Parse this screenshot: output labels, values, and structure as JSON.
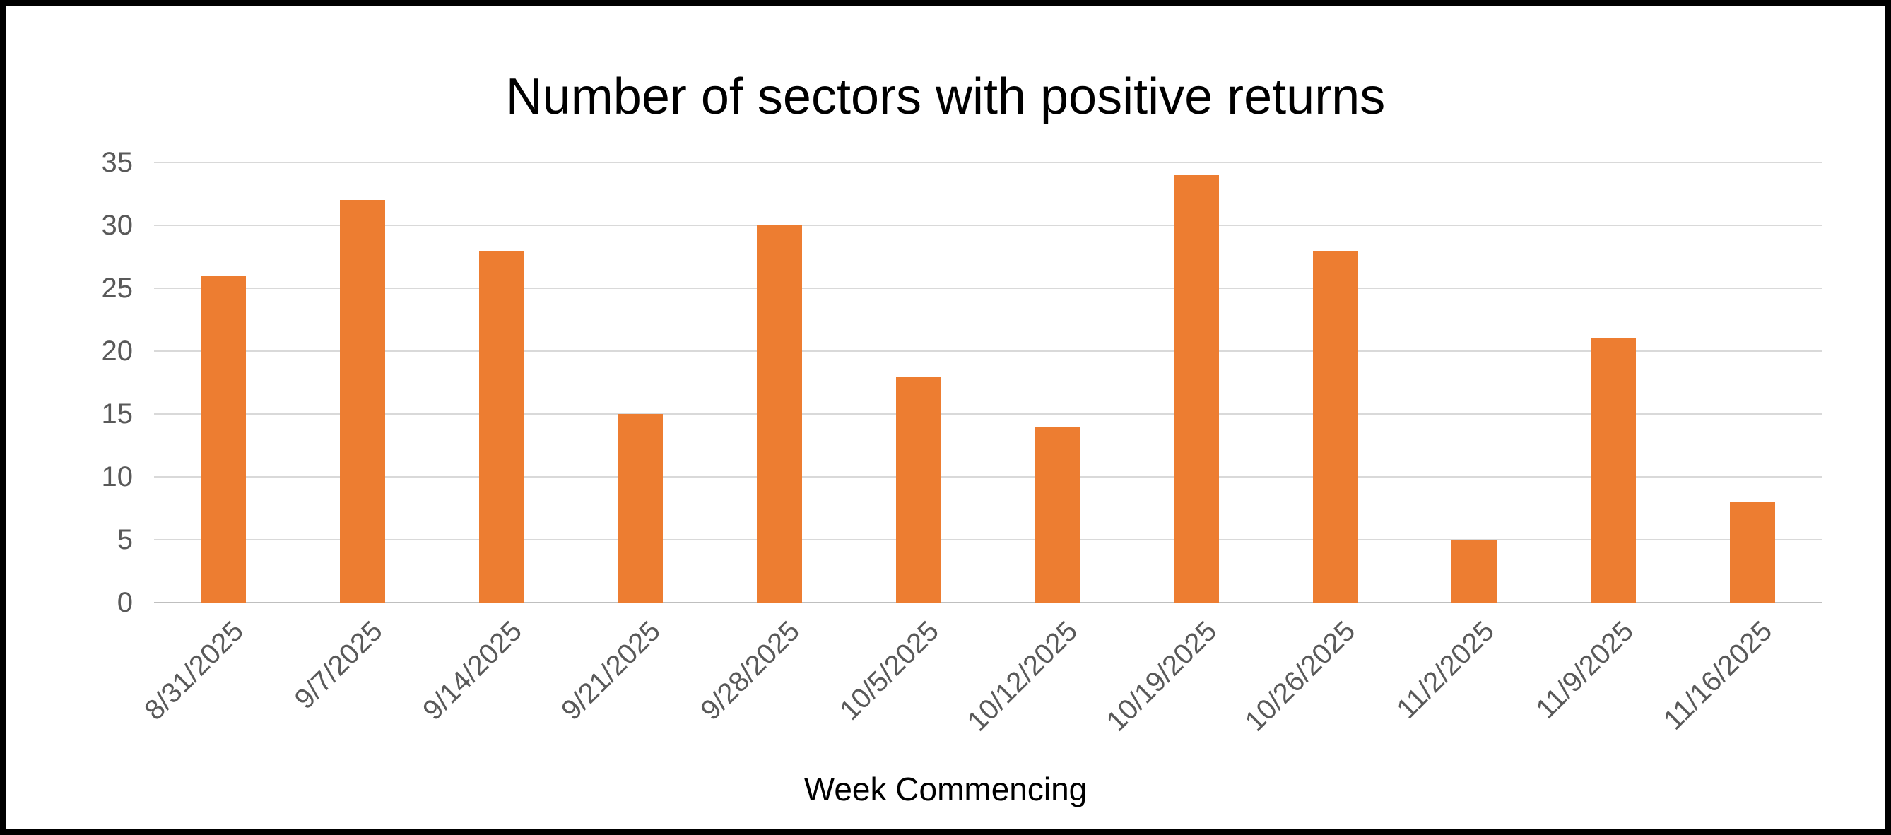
{
  "chart_data": {
    "type": "bar",
    "title": "Number of sectors with positive returns",
    "xlabel": "Week Commencing",
    "ylabel": "",
    "categories": [
      "8/31/2025",
      "9/7/2025",
      "9/14/2025",
      "9/21/2025",
      "9/28/2025",
      "10/5/2025",
      "10/12/2025",
      "10/19/2025",
      "10/26/2025",
      "11/2/2025",
      "11/9/2025",
      "11/16/2025"
    ],
    "values": [
      26,
      32,
      28,
      15,
      30,
      18,
      14,
      34,
      28,
      5,
      21,
      8
    ],
    "ylim": [
      0,
      35
    ],
    "ytick_interval": 5,
    "grid": true,
    "legend": false,
    "colors": {
      "bar": "#ed7d31",
      "gridline": "#d9d9d9",
      "baseline": "#bfbfbf",
      "tick_text": "#595959",
      "title_text": "#000000",
      "frame_border": "#000000"
    }
  }
}
